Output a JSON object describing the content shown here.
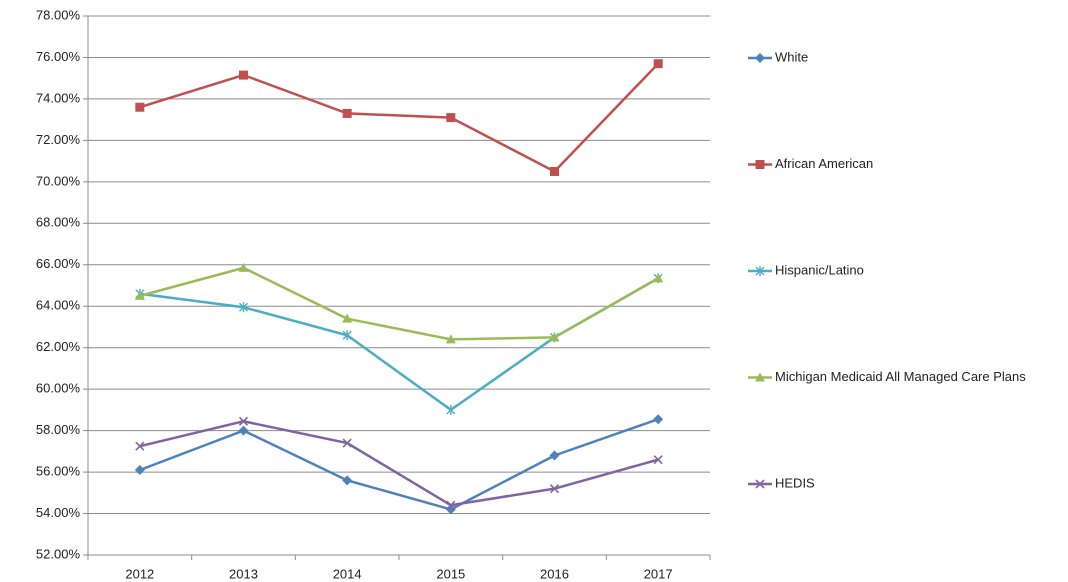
{
  "chart_data": {
    "type": "line",
    "categories": [
      "2012",
      "2013",
      "2014",
      "2015",
      "2016",
      "2017"
    ],
    "series": [
      {
        "name": "White",
        "color": "#4f81bd",
        "marker": "diamond",
        "values": [
          56.1,
          58.0,
          55.6,
          54.2,
          56.8,
          58.55
        ]
      },
      {
        "name": "African American",
        "color": "#c0504d",
        "marker": "square",
        "values": [
          73.6,
          75.15,
          73.3,
          73.1,
          70.5,
          75.7
        ]
      },
      {
        "name": "Hispanic/Latino",
        "color": "#4bacc6",
        "marker": "asterisk",
        "values": [
          64.6,
          63.95,
          62.6,
          59.0,
          62.5,
          65.35
        ]
      },
      {
        "name": "Michigan Medicaid All Managed Care Plans",
        "color": "#9bbb59",
        "marker": "triangle",
        "values": [
          64.5,
          65.85,
          63.4,
          62.4,
          62.5,
          65.35
        ]
      },
      {
        "name": "HEDIS",
        "color": "#8064a2",
        "marker": "x",
        "values": [
          57.25,
          58.45,
          57.4,
          54.4,
          55.2,
          56.6
        ]
      }
    ],
    "ylim": [
      52,
      78
    ],
    "yticks": [
      {
        "value": 52,
        "label": "52.00%"
      },
      {
        "value": 54,
        "label": "54.00%"
      },
      {
        "value": 56,
        "label": "56.00%"
      },
      {
        "value": 58,
        "label": "58.00%"
      },
      {
        "value": 60,
        "label": "60.00%"
      },
      {
        "value": 62,
        "label": "62.00%"
      },
      {
        "value": 64,
        "label": "64.00%"
      },
      {
        "value": 66,
        "label": "66.00%"
      },
      {
        "value": 68,
        "label": "68.00%"
      },
      {
        "value": 70,
        "label": "70.00%"
      },
      {
        "value": 72,
        "label": "72.00%"
      },
      {
        "value": 74,
        "label": "74.00%"
      },
      {
        "value": 76,
        "label": "76.00%"
      },
      {
        "value": 78,
        "label": "78.00%"
      }
    ],
    "grid": true,
    "legend": "right"
  }
}
